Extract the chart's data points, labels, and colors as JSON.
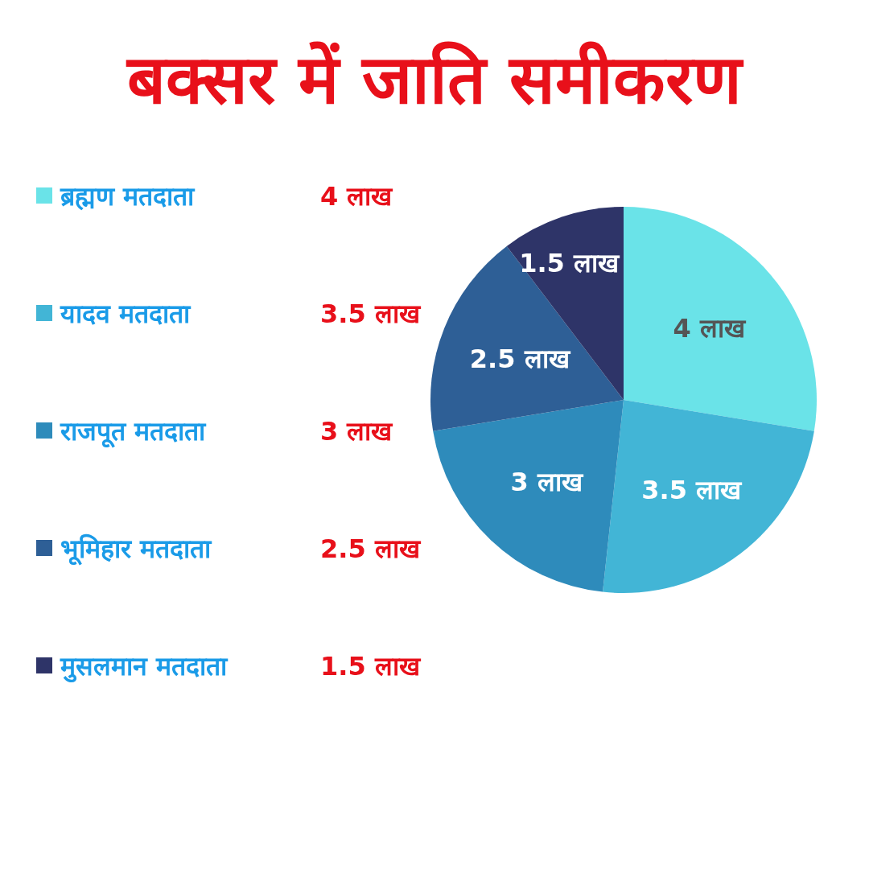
{
  "chart_data": {
    "type": "pie",
    "title": "बक्सर में जाति समीकरण",
    "categories": [
      "ब्रह्मण मतदाता",
      "यादव मतदाता",
      "राजपूत मतदाता",
      "भूमिहार मतदाता",
      "मुसलमान मतदाता"
    ],
    "values": [
      4,
      3.5,
      3,
      2.5,
      1.5
    ],
    "value_labels": [
      "4 लाख",
      "3.5 लाख",
      "3 लाख",
      "2.5 लाख",
      "1.5 लाख"
    ],
    "colors": [
      "#6ae3e8",
      "#42b5d6",
      "#2e8bbb",
      "#2e5f96",
      "#2e3468"
    ],
    "legend": "left"
  }
}
